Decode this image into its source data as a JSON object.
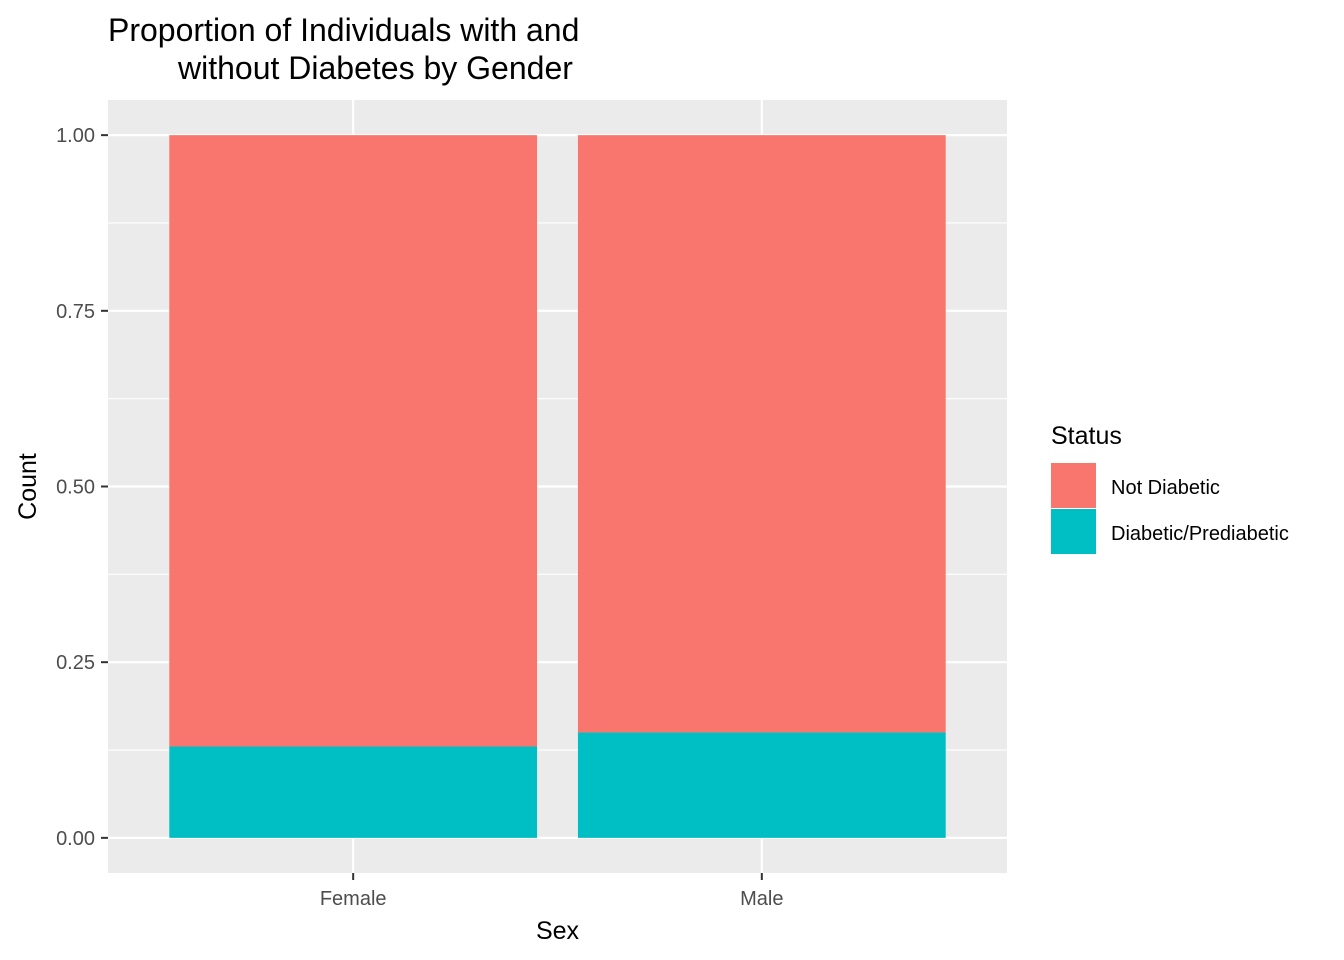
{
  "chart_data": {
    "type": "bar",
    "stacked": true,
    "title": [
      "Proportion of Individuals with and",
      "without Diabetes by Gender"
    ],
    "xlabel": "Sex",
    "ylabel": "Count",
    "categories": [
      "Female",
      "Male"
    ],
    "series": [
      {
        "name": "Not Diabetic",
        "color": "#F8766D",
        "values": [
          0.87,
          0.85
        ]
      },
      {
        "name": "Diabetic/Prediabetic",
        "color": "#00BFC4",
        "values": [
          0.13,
          0.15
        ]
      }
    ],
    "ylim": [
      -0.05,
      1.05
    ],
    "yticks": [
      0.0,
      0.25,
      0.5,
      0.75,
      1.0
    ],
    "ytick_labels": [
      "0.00",
      "0.25",
      "0.50",
      "0.75",
      "1.00"
    ],
    "grid": true,
    "legend": {
      "title": "Status",
      "position": "right"
    },
    "panel_color": "#EBEBEB",
    "grid_color": "#FFFFFF"
  }
}
